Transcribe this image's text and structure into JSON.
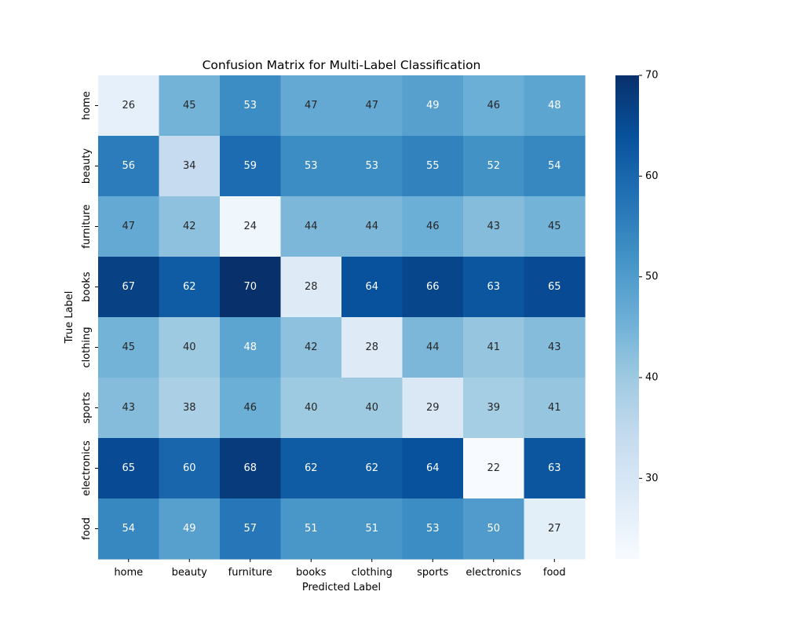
{
  "chart_data": {
    "type": "heatmap",
    "title": "Confusion Matrix for Multi-Label Classification",
    "xlabel": "Predicted Label",
    "ylabel": "True Label",
    "x_categories": [
      "home",
      "beauty",
      "furniture",
      "books",
      "clothing",
      "sports",
      "electronics",
      "food"
    ],
    "y_categories": [
      "home",
      "beauty",
      "furniture",
      "books",
      "clothing",
      "sports",
      "electronics",
      "food"
    ],
    "values": [
      [
        26,
        45,
        53,
        47,
        47,
        49,
        46,
        48
      ],
      [
        56,
        34,
        59,
        53,
        53,
        55,
        52,
        54
      ],
      [
        47,
        42,
        24,
        44,
        44,
        46,
        43,
        45
      ],
      [
        67,
        62,
        70,
        28,
        64,
        66,
        63,
        65
      ],
      [
        45,
        40,
        48,
        42,
        28,
        44,
        41,
        43
      ],
      [
        43,
        38,
        46,
        40,
        40,
        29,
        39,
        41
      ],
      [
        65,
        60,
        68,
        62,
        62,
        64,
        22,
        63
      ],
      [
        54,
        49,
        57,
        51,
        51,
        53,
        50,
        27
      ]
    ],
    "annotated": true,
    "colormap": "Blues",
    "vmin": 22,
    "vmax": 70,
    "colorbar_ticks": [
      30,
      40,
      50,
      60,
      70
    ],
    "colorbar_location": "right"
  }
}
